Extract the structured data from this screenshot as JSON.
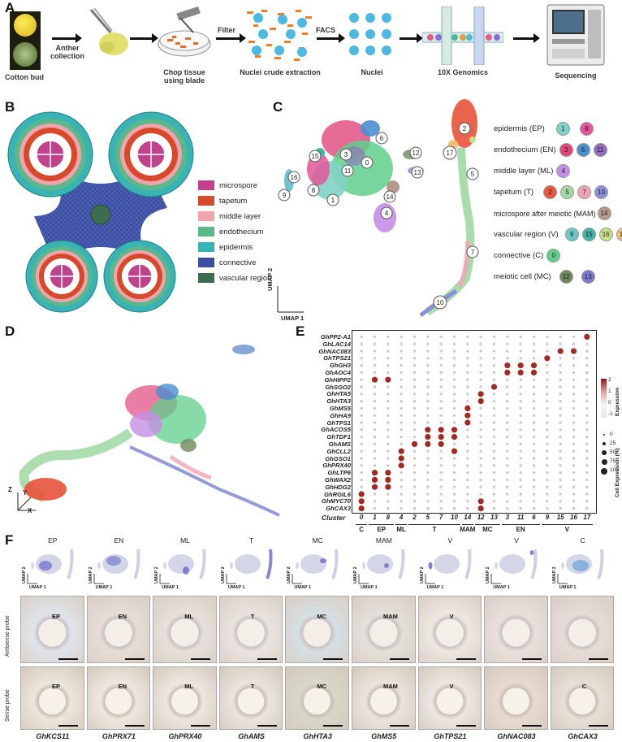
{
  "panels": [
    "A",
    "B",
    "C",
    "D",
    "E",
    "F"
  ],
  "panelA": {
    "steps": [
      "Cotton bud",
      "Anther\ncollection",
      "Chop tissue\nusing blade",
      "Filter",
      "Nuclei crude extraction",
      "FACS",
      "Nuclei",
      "10X Genomics",
      "Sequencing"
    ]
  },
  "panelB": {
    "legend": [
      {
        "label": "microspore",
        "color": "#c0428a"
      },
      {
        "label": "tapetum",
        "color": "#d7492a"
      },
      {
        "label": "middle layer",
        "color": "#f0a4ae"
      },
      {
        "label": "endothecium",
        "color": "#5ab88a"
      },
      {
        "label": "epidermis",
        "color": "#3ab3b4"
      },
      {
        "label": "connective",
        "color": "#3a4da2"
      },
      {
        "label": "vascular region",
        "color": "#3c6d4f"
      }
    ]
  },
  "panelC": {
    "axis_x": "UMAP 1",
    "axis_y": "UMAP 2",
    "cell_types": [
      {
        "label": "epidermis (EP)",
        "clusters": [
          {
            "n": "1",
            "c": "#7fd3c4"
          },
          {
            "n": "8",
            "c": "#e2569b"
          }
        ]
      },
      {
        "label": "endothecium (EN)",
        "clusters": [
          {
            "n": "3",
            "c": "#e0467d"
          },
          {
            "n": "6",
            "c": "#4a8ed0"
          },
          {
            "n": "11",
            "c": "#8f6cc0"
          }
        ]
      },
      {
        "label": "middle layer (ML)",
        "clusters": [
          {
            "n": "4",
            "c": "#c58ee6"
          }
        ]
      },
      {
        "label": "tapetum (T)",
        "clusters": [
          {
            "n": "2",
            "c": "#e8533a"
          },
          {
            "n": "5",
            "c": "#9fd8a2"
          },
          {
            "n": "7",
            "c": "#f2a3b3"
          },
          {
            "n": "10",
            "c": "#8a8fd8"
          }
        ]
      },
      {
        "label": "microspore after meiotic (MAM)",
        "clusters": [
          {
            "n": "14",
            "c": "#b39a8a"
          }
        ]
      },
      {
        "label": "vascular region (V)",
        "clusters": [
          {
            "n": "9",
            "c": "#6fc4c8"
          },
          {
            "n": "15",
            "c": "#3fb6a8"
          },
          {
            "n": "16",
            "c": "#c7e08a"
          },
          {
            "n": "17",
            "c": "#f3c27a"
          }
        ]
      },
      {
        "label": "connective (C)",
        "clusters": [
          {
            "n": "0",
            "c": "#5fcf8a"
          }
        ]
      },
      {
        "label": "meiotic cell (MC)",
        "clusters": [
          {
            "n": "12",
            "c": "#6f8a5a"
          },
          {
            "n": "13",
            "c": "#7a7ad0"
          }
        ]
      }
    ],
    "umap_labels": [
      "0",
      "1",
      "2",
      "3",
      "4",
      "5",
      "6",
      "7",
      "8",
      "9",
      "10",
      "11",
      "12",
      "13",
      "14",
      "15",
      "16",
      "17"
    ]
  },
  "panelD": {
    "axes": [
      "Z",
      "Y",
      "X"
    ]
  },
  "panelE": {
    "genes": [
      "GhPP2-A1",
      "GhLAC14",
      "GhNAC083",
      "GhTPS21",
      "GhGH3",
      "GhAOC4",
      "GhHIPP2",
      "GhSGO2",
      "GhHTA5",
      "GhHTA3",
      "GhMS5",
      "GhHA9",
      "GhTPS1",
      "GhACOS5",
      "GhTDF1",
      "GhAMS",
      "GhCLL2",
      "GhGSO1",
      "GhPRX40",
      "GhLTP6",
      "GhWAX2",
      "GhHDG2",
      "GhRGIL6",
      "GhMYC70",
      "GhCAX3"
    ],
    "cluster_label": "Cluster",
    "clusters": [
      "0",
      "1",
      "8",
      "4",
      "2",
      "5",
      "7",
      "10",
      "14",
      "12",
      "13",
      "3",
      "11",
      "6",
      "9",
      "15",
      "16",
      "17"
    ],
    "groups": [
      {
        "label": "C",
        "span": [
          0,
          0
        ]
      },
      {
        "label": "EP",
        "span": [
          1,
          2
        ]
      },
      {
        "label": "ML",
        "span": [
          3,
          3
        ]
      },
      {
        "label": "T",
        "span": [
          4,
          7
        ]
      },
      {
        "label": "MAM",
        "span": [
          8,
          8
        ]
      },
      {
        "label": "MC",
        "span": [
          9,
          10
        ]
      },
      {
        "label": "EN",
        "span": [
          11,
          13
        ]
      },
      {
        "label": "V",
        "span": [
          14,
          17
        ]
      }
    ],
    "expression_legend_title": "Expression",
    "expression_ticks": [
      "2",
      "1",
      "0",
      "-1"
    ],
    "size_legend_title": "Cell Expression (%)",
    "size_ticks": [
      "0",
      "25",
      "50",
      "75",
      "100"
    ],
    "strong": [
      [
        0,
        17
      ],
      [
        2,
        16
      ],
      [
        2,
        15
      ],
      [
        3,
        14
      ],
      [
        4,
        11
      ],
      [
        4,
        12
      ],
      [
        4,
        13
      ],
      [
        5,
        11
      ],
      [
        5,
        12
      ],
      [
        5,
        13
      ],
      [
        6,
        1
      ],
      [
        6,
        2
      ],
      [
        7,
        10
      ],
      [
        8,
        9
      ],
      [
        9,
        9
      ],
      [
        10,
        8
      ],
      [
        11,
        8
      ],
      [
        12,
        8
      ],
      [
        13,
        5
      ],
      [
        13,
        6
      ],
      [
        13,
        7
      ],
      [
        14,
        5
      ],
      [
        14,
        6
      ],
      [
        14,
        7
      ],
      [
        15,
        4
      ],
      [
        15,
        5
      ],
      [
        15,
        6
      ],
      [
        16,
        7
      ],
      [
        16,
        3
      ],
      [
        17,
        3
      ],
      [
        18,
        3
      ],
      [
        19,
        1
      ],
      [
        19,
        2
      ],
      [
        20,
        1
      ],
      [
        20,
        2
      ],
      [
        21,
        1
      ],
      [
        21,
        2
      ],
      [
        22,
        0
      ],
      [
        23,
        0
      ],
      [
        23,
        9
      ],
      [
        24,
        0
      ],
      [
        24,
        9
      ]
    ]
  },
  "panelF": {
    "columns": [
      "EP",
      "EN",
      "ML",
      "T",
      "MC",
      "MAM",
      "V",
      "V",
      "C"
    ],
    "row_labels": [
      "Antisense probe",
      "Sense probe"
    ],
    "umap_x": "UMAP 1",
    "umap_y": "UMAP 2",
    "antisense_marks": [
      "EP",
      "EN",
      "ML",
      "T",
      "MC",
      "MAM",
      "V",
      "",
      ""
    ],
    "sense_marks": [
      "EP",
      "EN",
      "ML",
      "T",
      "MC",
      "MAM",
      "V",
      "",
      "C"
    ],
    "genes": [
      "GhKCS11",
      "GhPRX71",
      "GhPRX40",
      "GhAMS",
      "GhHTA3",
      "GhMS5",
      "GhTPS21",
      "GhNAC083",
      "GhCAX3"
    ]
  }
}
